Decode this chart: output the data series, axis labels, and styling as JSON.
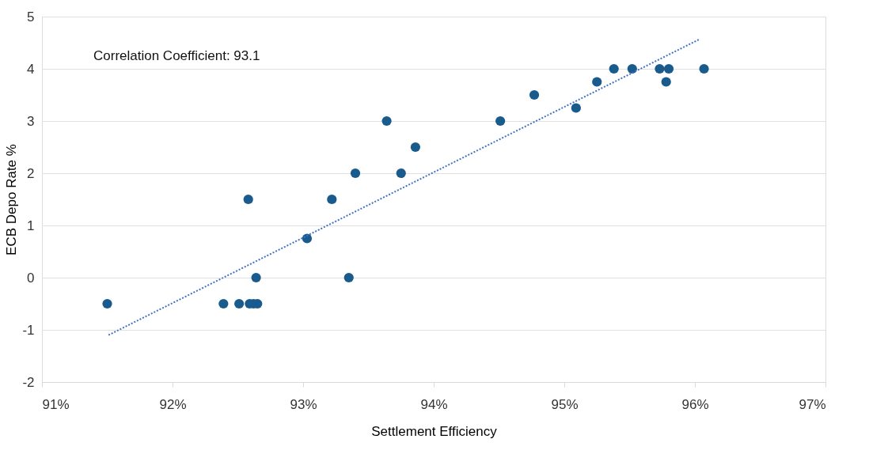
{
  "chart_data": {
    "type": "scatter",
    "xlabel": "Settlement Efficiency",
    "ylabel": "ECB Depo Rate %",
    "annotations": [
      "Correlation Coefficient: 93.1"
    ],
    "xlim": [
      91,
      97
    ],
    "xticks": [
      {
        "value": 91,
        "label": "91%"
      },
      {
        "value": 92,
        "label": "92%"
      },
      {
        "value": 93,
        "label": "93%"
      },
      {
        "value": 94,
        "label": "94%"
      },
      {
        "value": 95,
        "label": "95%"
      },
      {
        "value": 96,
        "label": "96%"
      },
      {
        "value": 97,
        "label": "97%"
      }
    ],
    "ylim": [
      -2,
      5
    ],
    "yticks": [
      -2,
      -1,
      0,
      1,
      2,
      3,
      4,
      5
    ],
    "grid": "y",
    "series": [
      {
        "color": "#1a5b8e",
        "marker": "circle",
        "x": [
          91.5,
          92.39,
          92.51,
          92.59,
          92.62,
          92.65,
          92.64,
          92.58,
          93.03,
          93.22,
          93.35,
          93.4,
          93.64,
          93.75,
          93.86,
          94.51,
          94.77,
          95.09,
          95.25,
          95.38,
          95.52,
          95.73,
          95.8,
          95.78,
          96.07
        ],
        "values": [
          -0.5,
          -0.5,
          -0.5,
          -0.5,
          -0.5,
          -0.5,
          0,
          1.5,
          0.75,
          1.5,
          0,
          2,
          3,
          2,
          2.5,
          3,
          3.5,
          3.25,
          3.75,
          4,
          4,
          4,
          4,
          3.75,
          4
        ]
      },
      {
        "type": "line",
        "color": "#4472c4",
        "line_style": "dotted",
        "marker": "none",
        "x": [
          91.51,
          96.03
        ],
        "values": [
          -1.1,
          4.56
        ]
      }
    ]
  }
}
